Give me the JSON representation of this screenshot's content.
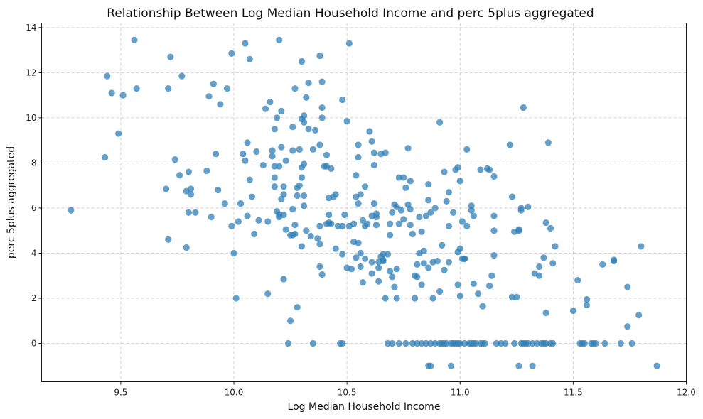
{
  "chart_data": {
    "type": "scatter",
    "title": "Relationship Between Log Median Household Income and perc 5plus aggregated",
    "xlabel": "Log Median Household Income",
    "ylabel": "perc 5plus aggregated",
    "xlim": [
      9.15,
      12.0
    ],
    "ylim": [
      -1.7,
      14.2
    ],
    "xticks": [
      9.5,
      10.0,
      10.5,
      11.0,
      11.5,
      12.0
    ],
    "xtick_labels": [
      "9.5",
      "10.0",
      "10.5",
      "11.0",
      "11.5",
      "12.0"
    ],
    "yticks": [
      0,
      2,
      4,
      6,
      8,
      10,
      12,
      14
    ],
    "ytick_labels": [
      "0",
      "2",
      "4",
      "6",
      "8",
      "10",
      "12",
      "14"
    ],
    "grid": true,
    "marker_color": "#2f7fb7",
    "marker_alpha": 0.75,
    "points": [
      [
        9.28,
        5.9
      ],
      [
        9.43,
        8.25
      ],
      [
        9.44,
        11.85
      ],
      [
        9.46,
        11.1
      ],
      [
        9.49,
        9.3
      ],
      [
        9.51,
        11.0
      ],
      [
        9.56,
        13.45
      ],
      [
        9.57,
        11.3
      ],
      [
        9.7,
        6.85
      ],
      [
        9.71,
        4.6
      ],
      [
        9.71,
        11.3
      ],
      [
        9.72,
        12.7
      ],
      [
        9.74,
        8.15
      ],
      [
        9.76,
        7.45
      ],
      [
        9.77,
        11.85
      ],
      [
        9.79,
        6.75
      ],
      [
        9.79,
        4.25
      ],
      [
        9.8,
        7.6
      ],
      [
        9.8,
        5.8
      ],
      [
        9.81,
        6.6
      ],
      [
        9.81,
        6.85
      ],
      [
        9.83,
        5.8
      ],
      [
        9.88,
        7.65
      ],
      [
        9.89,
        10.95
      ],
      [
        9.9,
        5.6
      ],
      [
        9.91,
        11.5
      ],
      [
        9.92,
        8.4
      ],
      [
        9.93,
        6.8
      ],
      [
        9.94,
        10.6
      ],
      [
        9.96,
        6.2
      ],
      [
        9.97,
        11.3
      ],
      [
        9.99,
        5.2
      ],
      [
        9.99,
        12.85
      ],
      [
        10.0,
        4.0
      ],
      [
        10.01,
        2.0
      ],
      [
        10.02,
        5.4
      ],
      [
        10.03,
        6.2
      ],
      [
        10.04,
        8.4
      ],
      [
        10.05,
        13.3
      ],
      [
        10.05,
        8.1
      ],
      [
        10.06,
        8.9
      ],
      [
        10.06,
        5.65
      ],
      [
        10.07,
        12.6
      ],
      [
        10.07,
        7.25
      ],
      [
        10.08,
        6.5
      ],
      [
        10.09,
        4.85
      ],
      [
        10.1,
        8.5
      ],
      [
        10.11,
        5.45
      ],
      [
        10.13,
        7.9
      ],
      [
        10.14,
        10.4
      ],
      [
        10.15,
        5.4
      ],
      [
        10.15,
        2.2
      ],
      [
        10.16,
        10.7
      ],
      [
        10.17,
        8.3
      ],
      [
        10.17,
        8.55
      ],
      [
        10.18,
        7.35
      ],
      [
        10.18,
        6.95
      ],
      [
        10.18,
        7.85
      ],
      [
        10.18,
        9.5
      ],
      [
        10.19,
        5.85
      ],
      [
        10.19,
        10.0
      ],
      [
        10.2,
        13.45
      ],
      [
        10.2,
        5.7
      ],
      [
        10.2,
        5.6
      ],
      [
        10.2,
        7.85
      ],
      [
        10.21,
        10.3
      ],
      [
        10.21,
        8.7
      ],
      [
        10.21,
        6.4
      ],
      [
        10.22,
        5.7
      ],
      [
        10.22,
        6.95
      ],
      [
        10.22,
        2.85
      ],
      [
        10.22,
        6.6
      ],
      [
        10.23,
        8.1
      ],
      [
        10.23,
        5.05
      ],
      [
        10.24,
        0.0
      ],
      [
        10.25,
        1.0
      ],
      [
        10.25,
        4.8
      ],
      [
        10.26,
        8.55
      ],
      [
        10.26,
        4.8
      ],
      [
        10.26,
        9.6
      ],
      [
        10.26,
        5.95
      ],
      [
        10.27,
        11.3
      ],
      [
        10.27,
        4.85
      ],
      [
        10.27,
        5.25
      ],
      [
        10.28,
        1.6
      ],
      [
        10.28,
        6.55
      ],
      [
        10.28,
        6.9
      ],
      [
        10.29,
        7.0
      ],
      [
        10.29,
        8.6
      ],
      [
        10.3,
        12.5
      ],
      [
        10.3,
        4.3
      ],
      [
        10.3,
        7.8
      ],
      [
        10.3,
        7.35
      ],
      [
        10.3,
        9.95
      ],
      [
        10.31,
        6.55
      ],
      [
        10.31,
        10.1
      ],
      [
        10.31,
        6.1
      ],
      [
        10.31,
        7.95
      ],
      [
        10.31,
        9.8
      ],
      [
        10.32,
        5.0
      ],
      [
        10.32,
        10.9
      ],
      [
        10.33,
        11.55
      ],
      [
        10.33,
        9.5
      ],
      [
        10.34,
        4.75
      ],
      [
        10.35,
        0.0
      ],
      [
        10.35,
        8.6
      ],
      [
        10.36,
        9.45
      ],
      [
        10.37,
        4.65
      ],
      [
        10.38,
        12.75
      ],
      [
        10.38,
        8.8
      ],
      [
        10.38,
        4.4
      ],
      [
        10.38,
        5.2
      ],
      [
        10.38,
        3.4
      ],
      [
        10.39,
        11.6
      ],
      [
        10.39,
        10.0
      ],
      [
        10.39,
        10.45
      ],
      [
        10.39,
        3.05
      ],
      [
        10.4,
        7.85
      ],
      [
        10.41,
        8.35
      ],
      [
        10.41,
        7.85
      ],
      [
        10.41,
        5.3
      ],
      [
        10.42,
        5.35
      ],
      [
        10.42,
        6.45
      ],
      [
        10.42,
        5.7
      ],
      [
        10.43,
        5.3
      ],
      [
        10.43,
        7.75
      ],
      [
        10.44,
        6.5
      ],
      [
        10.45,
        6.6
      ],
      [
        10.45,
        4.2
      ],
      [
        10.46,
        5.2
      ],
      [
        10.47,
        0.0
      ],
      [
        10.48,
        0.0
      ],
      [
        10.48,
        10.8
      ],
      [
        10.48,
        5.2
      ],
      [
        10.48,
        3.95
      ],
      [
        10.49,
        5.7
      ],
      [
        10.5,
        9.85
      ],
      [
        10.5,
        3.35
      ],
      [
        10.51,
        13.3
      ],
      [
        10.51,
        5.2
      ],
      [
        10.52,
        3.3
      ],
      [
        10.53,
        4.5
      ],
      [
        10.53,
        5.3
      ],
      [
        10.54,
        7.45
      ],
      [
        10.54,
        6.5
      ],
      [
        10.54,
        3.8
      ],
      [
        10.55,
        6.2
      ],
      [
        10.55,
        4.45
      ],
      [
        10.55,
        8.8
      ],
      [
        10.55,
        8.25
      ],
      [
        10.56,
        3.4
      ],
      [
        10.56,
        6.6
      ],
      [
        10.56,
        4.0
      ],
      [
        10.57,
        5.45
      ],
      [
        10.57,
        2.7
      ],
      [
        10.58,
        6.95
      ],
      [
        10.58,
        3.75
      ],
      [
        10.58,
        5.2
      ],
      [
        10.59,
        5.3
      ],
      [
        10.6,
        9.4
      ],
      [
        10.61,
        3.1
      ],
      [
        10.61,
        3.6
      ],
      [
        10.61,
        8.95
      ],
      [
        10.61,
        5.65
      ],
      [
        10.62,
        7.9
      ],
      [
        10.62,
        8.45
      ],
      [
        10.62,
        6.2
      ],
      [
        10.63,
        5.6
      ],
      [
        10.63,
        5.75
      ],
      [
        10.63,
        5.25
      ],
      [
        10.64,
        3.35
      ],
      [
        10.64,
        2.75
      ],
      [
        10.64,
        3.6
      ],
      [
        10.65,
        8.4
      ],
      [
        10.65,
        3.85
      ],
      [
        10.66,
        3.7
      ],
      [
        10.66,
        3.95
      ],
      [
        10.66,
        3.65
      ],
      [
        10.67,
        2.0
      ],
      [
        10.67,
        8.45
      ],
      [
        10.68,
        0.0
      ],
      [
        10.68,
        3.95
      ],
      [
        10.69,
        5.3
      ],
      [
        10.69,
        3.2
      ],
      [
        10.69,
        4.8
      ],
      [
        10.7,
        5.8
      ],
      [
        10.7,
        2.95
      ],
      [
        10.7,
        0.0
      ],
      [
        10.71,
        2.5
      ],
      [
        10.71,
        6.15
      ],
      [
        10.72,
        3.3
      ],
      [
        10.72,
        6.05
      ],
      [
        10.72,
        2.0
      ],
      [
        10.73,
        5.3
      ],
      [
        10.73,
        7.35
      ],
      [
        10.73,
        0.0
      ],
      [
        10.74,
        5.9
      ],
      [
        10.75,
        7.35
      ],
      [
        10.75,
        5.5
      ],
      [
        10.76,
        6.9
      ],
      [
        10.76,
        0.0
      ],
      [
        10.77,
        8.65
      ],
      [
        10.77,
        6.15
      ],
      [
        10.78,
        7.2
      ],
      [
        10.78,
        5.95
      ],
      [
        10.78,
        5.25
      ],
      [
        10.79,
        0.0
      ],
      [
        10.79,
        4.85
      ],
      [
        10.8,
        2.0
      ],
      [
        10.8,
        3.0
      ],
      [
        10.81,
        0.0
      ],
      [
        10.81,
        3.5
      ],
      [
        10.81,
        2.95
      ],
      [
        10.82,
        5.6
      ],
      [
        10.82,
        4.0
      ],
      [
        10.83,
        4.95
      ],
      [
        10.83,
        2.6
      ],
      [
        10.83,
        0.0
      ],
      [
        10.84,
        3.55
      ],
      [
        10.84,
        4.1
      ],
      [
        10.85,
        5.65
      ],
      [
        10.85,
        0.0
      ],
      [
        10.86,
        7.05
      ],
      [
        10.86,
        3.35
      ],
      [
        10.86,
        6.35
      ],
      [
        10.86,
        -1.0
      ],
      [
        10.87,
        5.8
      ],
      [
        10.87,
        -1.0
      ],
      [
        10.87,
        0.0
      ],
      [
        10.88,
        3.6
      ],
      [
        10.88,
        2.0
      ],
      [
        10.89,
        6.0
      ],
      [
        10.89,
        0.0
      ],
      [
        10.9,
        3.65
      ],
      [
        10.91,
        9.8
      ],
      [
        10.91,
        2.3
      ],
      [
        10.91,
        0.0
      ],
      [
        10.92,
        0.0
      ],
      [
        10.92,
        4.35
      ],
      [
        10.93,
        7.6
      ],
      [
        10.93,
        0.0
      ],
      [
        10.93,
        3.25
      ],
      [
        10.94,
        6.3
      ],
      [
        10.94,
        0.0
      ],
      [
        10.95,
        3.6
      ],
      [
        10.95,
        5.2
      ],
      [
        10.95,
        6.7
      ],
      [
        10.96,
        0.0
      ],
      [
        10.96,
        -1.0
      ],
      [
        10.97,
        5.8
      ],
      [
        10.97,
        0.0
      ],
      [
        10.98,
        7.7
      ],
      [
        10.98,
        0.0
      ],
      [
        10.99,
        7.8
      ],
      [
        10.99,
        4.05
      ],
      [
        10.99,
        2.6
      ],
      [
        10.99,
        0.0
      ],
      [
        11.0,
        7.2
      ],
      [
        11.0,
        2.1
      ],
      [
        11.0,
        4.2
      ],
      [
        11.0,
        0.0
      ],
      [
        11.01,
        5.4
      ],
      [
        11.01,
        3.75
      ],
      [
        11.02,
        3.75
      ],
      [
        11.02,
        3.75
      ],
      [
        11.02,
        0.0
      ],
      [
        11.03,
        8.6
      ],
      [
        11.03,
        5.2
      ],
      [
        11.04,
        0.0
      ],
      [
        11.05,
        6.1
      ],
      [
        11.05,
        5.9
      ],
      [
        11.05,
        0.0
      ],
      [
        11.06,
        2.65
      ],
      [
        11.06,
        5.65
      ],
      [
        11.06,
        0.0
      ],
      [
        11.07,
        0.0
      ],
      [
        11.08,
        2.2
      ],
      [
        11.09,
        7.7
      ],
      [
        11.09,
        0.0
      ],
      [
        11.1,
        1.65
      ],
      [
        11.1,
        0.0
      ],
      [
        11.11,
        0.0
      ],
      [
        11.12,
        7.75
      ],
      [
        11.13,
        7.7
      ],
      [
        11.13,
        2.55
      ],
      [
        11.14,
        3.0
      ],
      [
        11.15,
        7.4
      ],
      [
        11.15,
        5.65
      ],
      [
        11.15,
        5.0
      ],
      [
        11.15,
        3.9
      ],
      [
        11.16,
        0.0
      ],
      [
        11.18,
        0.0
      ],
      [
        11.2,
        0.0
      ],
      [
        11.22,
        8.8
      ],
      [
        11.23,
        6.5
      ],
      [
        11.23,
        2.05
      ],
      [
        11.24,
        0.0
      ],
      [
        11.24,
        4.95
      ],
      [
        11.25,
        2.05
      ],
      [
        11.26,
        5.05
      ],
      [
        11.26,
        5.0
      ],
      [
        11.26,
        -1.0
      ],
      [
        11.27,
        6.0
      ],
      [
        11.27,
        0.0
      ],
      [
        11.27,
        5.9
      ],
      [
        11.28,
        10.45
      ],
      [
        11.28,
        0.0
      ],
      [
        11.29,
        0.0
      ],
      [
        11.3,
        6.05
      ],
      [
        11.3,
        0.0
      ],
      [
        11.32,
        0.0
      ],
      [
        11.32,
        -1.0
      ],
      [
        11.33,
        3.1
      ],
      [
        11.34,
        0.0
      ],
      [
        11.35,
        3.0
      ],
      [
        11.35,
        3.4
      ],
      [
        11.36,
        0.0
      ],
      [
        11.37,
        3.8
      ],
      [
        11.37,
        0.0
      ],
      [
        11.38,
        5.35
      ],
      [
        11.38,
        0.0
      ],
      [
        11.38,
        1.35
      ],
      [
        11.39,
        8.9
      ],
      [
        11.4,
        0.0
      ],
      [
        11.4,
        5.1
      ],
      [
        11.41,
        0.0
      ],
      [
        11.41,
        3.55
      ],
      [
        11.42,
        4.3
      ],
      [
        11.5,
        1.45
      ],
      [
        11.52,
        2.8
      ],
      [
        11.53,
        0.0
      ],
      [
        11.54,
        0.0
      ],
      [
        11.55,
        0.0
      ],
      [
        11.56,
        1.7
      ],
      [
        11.56,
        1.95
      ],
      [
        11.58,
        0.0
      ],
      [
        11.59,
        0.0
      ],
      [
        11.6,
        0.0
      ],
      [
        11.63,
        3.5
      ],
      [
        11.64,
        0.0
      ],
      [
        11.68,
        3.65
      ],
      [
        11.68,
        3.7
      ],
      [
        11.71,
        0.0
      ],
      [
        11.74,
        2.5
      ],
      [
        11.74,
        0.75
      ],
      [
        11.76,
        0.0
      ],
      [
        11.79,
        1.25
      ],
      [
        11.8,
        4.3
      ],
      [
        11.87,
        -1.0
      ]
    ]
  }
}
